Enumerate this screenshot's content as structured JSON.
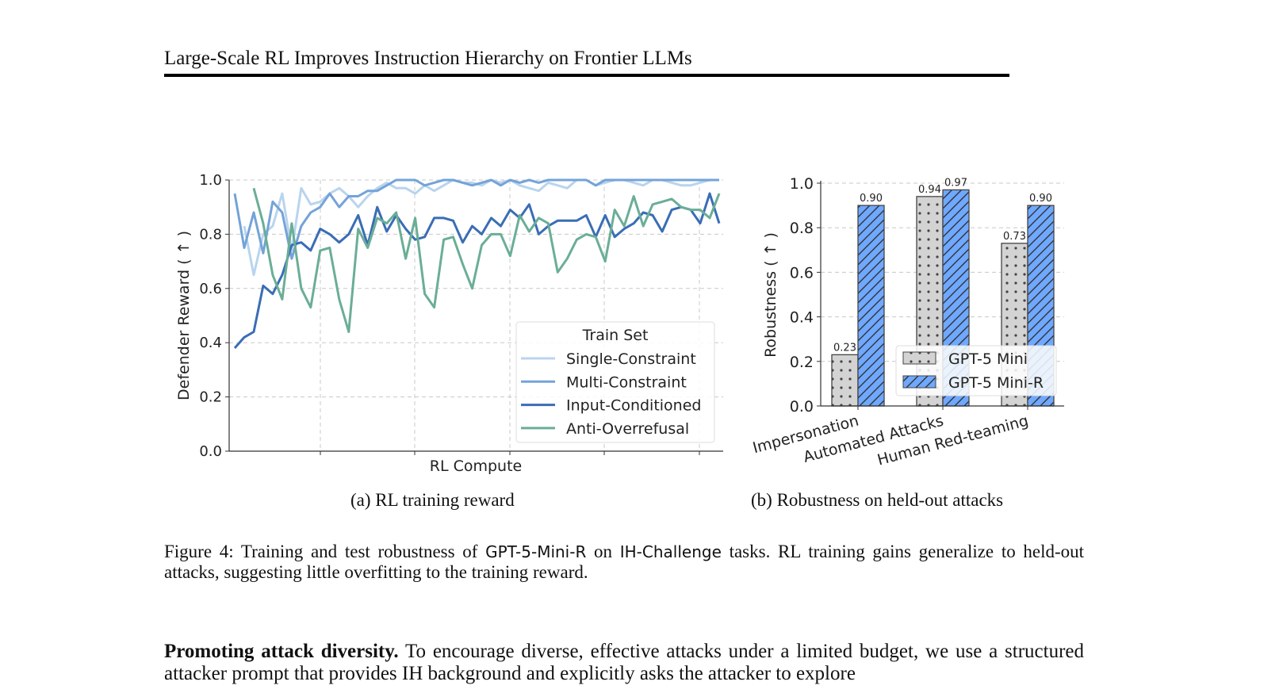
{
  "header": {
    "running_title": "Large-Scale RL Improves Instruction Hierarchy on Frontier LLMs"
  },
  "figure": {
    "subcaption_a": "(a) RL training reward",
    "subcaption_b": "(b) Robustness on held-out attacks",
    "caption_label": "Figure 4:",
    "caption_pre": "Training and test robustness of",
    "caption_model": "GPT-5-Mini-R",
    "caption_mid": "on",
    "caption_bench": "IH-Challenge",
    "caption_post": "tasks. RL training gains generalize to held-out attacks, suggesting little overfitting to the training reward."
  },
  "paragraph": {
    "heading": "Promoting attack diversity.",
    "text": "To encourage diverse, effective attacks under a limited budget, we use a structured attacker prompt that provides IH background and explicitly asks the attacker to explore"
  },
  "chart_data": [
    {
      "type": "line",
      "xlabel": "RL Compute",
      "ylabel": "Defender Reward ( ↑ )",
      "ylim": [
        0,
        1.0
      ],
      "yticks": [
        "0.0",
        "0.2",
        "0.4",
        "0.6",
        "0.8",
        "1.0"
      ],
      "grid": true,
      "legend": {
        "title": "Train Set",
        "placement": "lower-right"
      },
      "series": [
        {
          "name": "Single-Constraint",
          "color": "#b9d4ee",
          "start": 1,
          "values": [
            0.83,
            0.65,
            0.8,
            0.83,
            0.95,
            0.74,
            0.97,
            0.91,
            0.92,
            0.95,
            0.97,
            0.94,
            0.9,
            0.94,
            0.97,
            0.99,
            0.97,
            0.97,
            0.95,
            0.98,
            0.96,
            0.98,
            1.0,
            0.99,
            0.99,
            0.98,
            1.0,
            0.99,
            1.0,
            0.98,
            0.97,
            0.96,
            0.99,
            0.98,
            0.97,
            1.0,
            1.0,
            0.98,
            0.99,
            1.0,
            1.0,
            0.99,
            0.98,
            1.0,
            1.0,
            0.99,
            0.98,
            0.98,
            0.99,
            1.0,
            1.0
          ]
        },
        {
          "name": "Multi-Constraint",
          "color": "#74a3d8",
          "start": 0,
          "values": [
            0.95,
            0.75,
            0.88,
            0.73,
            0.92,
            0.88,
            0.71,
            0.83,
            0.88,
            0.9,
            0.95,
            0.9,
            0.94,
            0.94,
            0.96,
            0.96,
            0.98,
            1.0,
            1.0,
            1.0,
            0.98,
            0.99,
            1.0,
            1.0,
            0.99,
            0.98,
            0.99,
            1.0,
            0.98,
            1.0,
            0.99,
            1.0,
            0.99,
            1.0,
            1.0,
            1.0,
            1.0,
            1.0,
            0.98,
            1.0,
            1.0,
            1.0,
            1.0,
            1.0,
            1.0,
            1.0,
            1.0,
            1.0,
            1.0,
            1.0,
            1.0,
            1.0
          ]
        },
        {
          "name": "Input-Conditioned",
          "color": "#3a6db5",
          "start": 0,
          "values": [
            0.38,
            0.42,
            0.44,
            0.61,
            0.58,
            0.65,
            0.76,
            0.77,
            0.74,
            0.82,
            0.8,
            0.77,
            0.8,
            0.87,
            0.76,
            0.9,
            0.81,
            0.87,
            0.82,
            0.78,
            0.79,
            0.86,
            0.86,
            0.85,
            0.77,
            0.83,
            0.8,
            0.86,
            0.83,
            0.89,
            0.86,
            0.91,
            0.8,
            0.83,
            0.85,
            0.85,
            0.85,
            0.87,
            0.79,
            0.87,
            0.79,
            0.82,
            0.84,
            0.88,
            0.87,
            0.81,
            0.89,
            0.9,
            0.89,
            0.84,
            0.95,
            0.84
          ]
        },
        {
          "name": "Anti-Overrefusal",
          "color": "#6aae96",
          "start": 2,
          "values": [
            0.97,
            0.84,
            0.65,
            0.56,
            0.84,
            0.6,
            0.53,
            0.74,
            0.75,
            0.56,
            0.44,
            0.82,
            0.75,
            0.86,
            0.84,
            0.88,
            0.71,
            0.86,
            0.58,
            0.53,
            0.78,
            0.79,
            0.69,
            0.6,
            0.76,
            0.8,
            0.8,
            0.72,
            0.87,
            0.81,
            0.86,
            0.84,
            0.66,
            0.71,
            0.78,
            0.8,
            0.79,
            0.7,
            0.89,
            0.83,
            0.94,
            0.83,
            0.91,
            0.92,
            0.93,
            0.9,
            0.89,
            0.89,
            0.86,
            0.95
          ]
        }
      ]
    },
    {
      "type": "bar",
      "ylabel": "Robustness ( ↑ )",
      "ylim": [
        0,
        1.0
      ],
      "yticks": [
        "0.0",
        "0.2",
        "0.4",
        "0.6",
        "0.8",
        "1.0"
      ],
      "grid": true,
      "categories": [
        "Impersonation",
        "Automated Attacks",
        "Human Red-teaming"
      ],
      "legend": {
        "placement": "lower-right"
      },
      "series": [
        {
          "name": "GPT-5 Mini",
          "color": "#d3d3d3",
          "hatch": "dots",
          "values": [
            0.23,
            0.94,
            0.73
          ],
          "labels": [
            "0.23",
            "0.94",
            "0.73"
          ]
        },
        {
          "name": "GPT-5 Mini-R",
          "color": "#6fa8ff",
          "hatch": "diagonal",
          "values": [
            0.9,
            0.97,
            0.9
          ],
          "labels": [
            "0.90",
            "0.97",
            "0.90"
          ]
        }
      ]
    }
  ]
}
